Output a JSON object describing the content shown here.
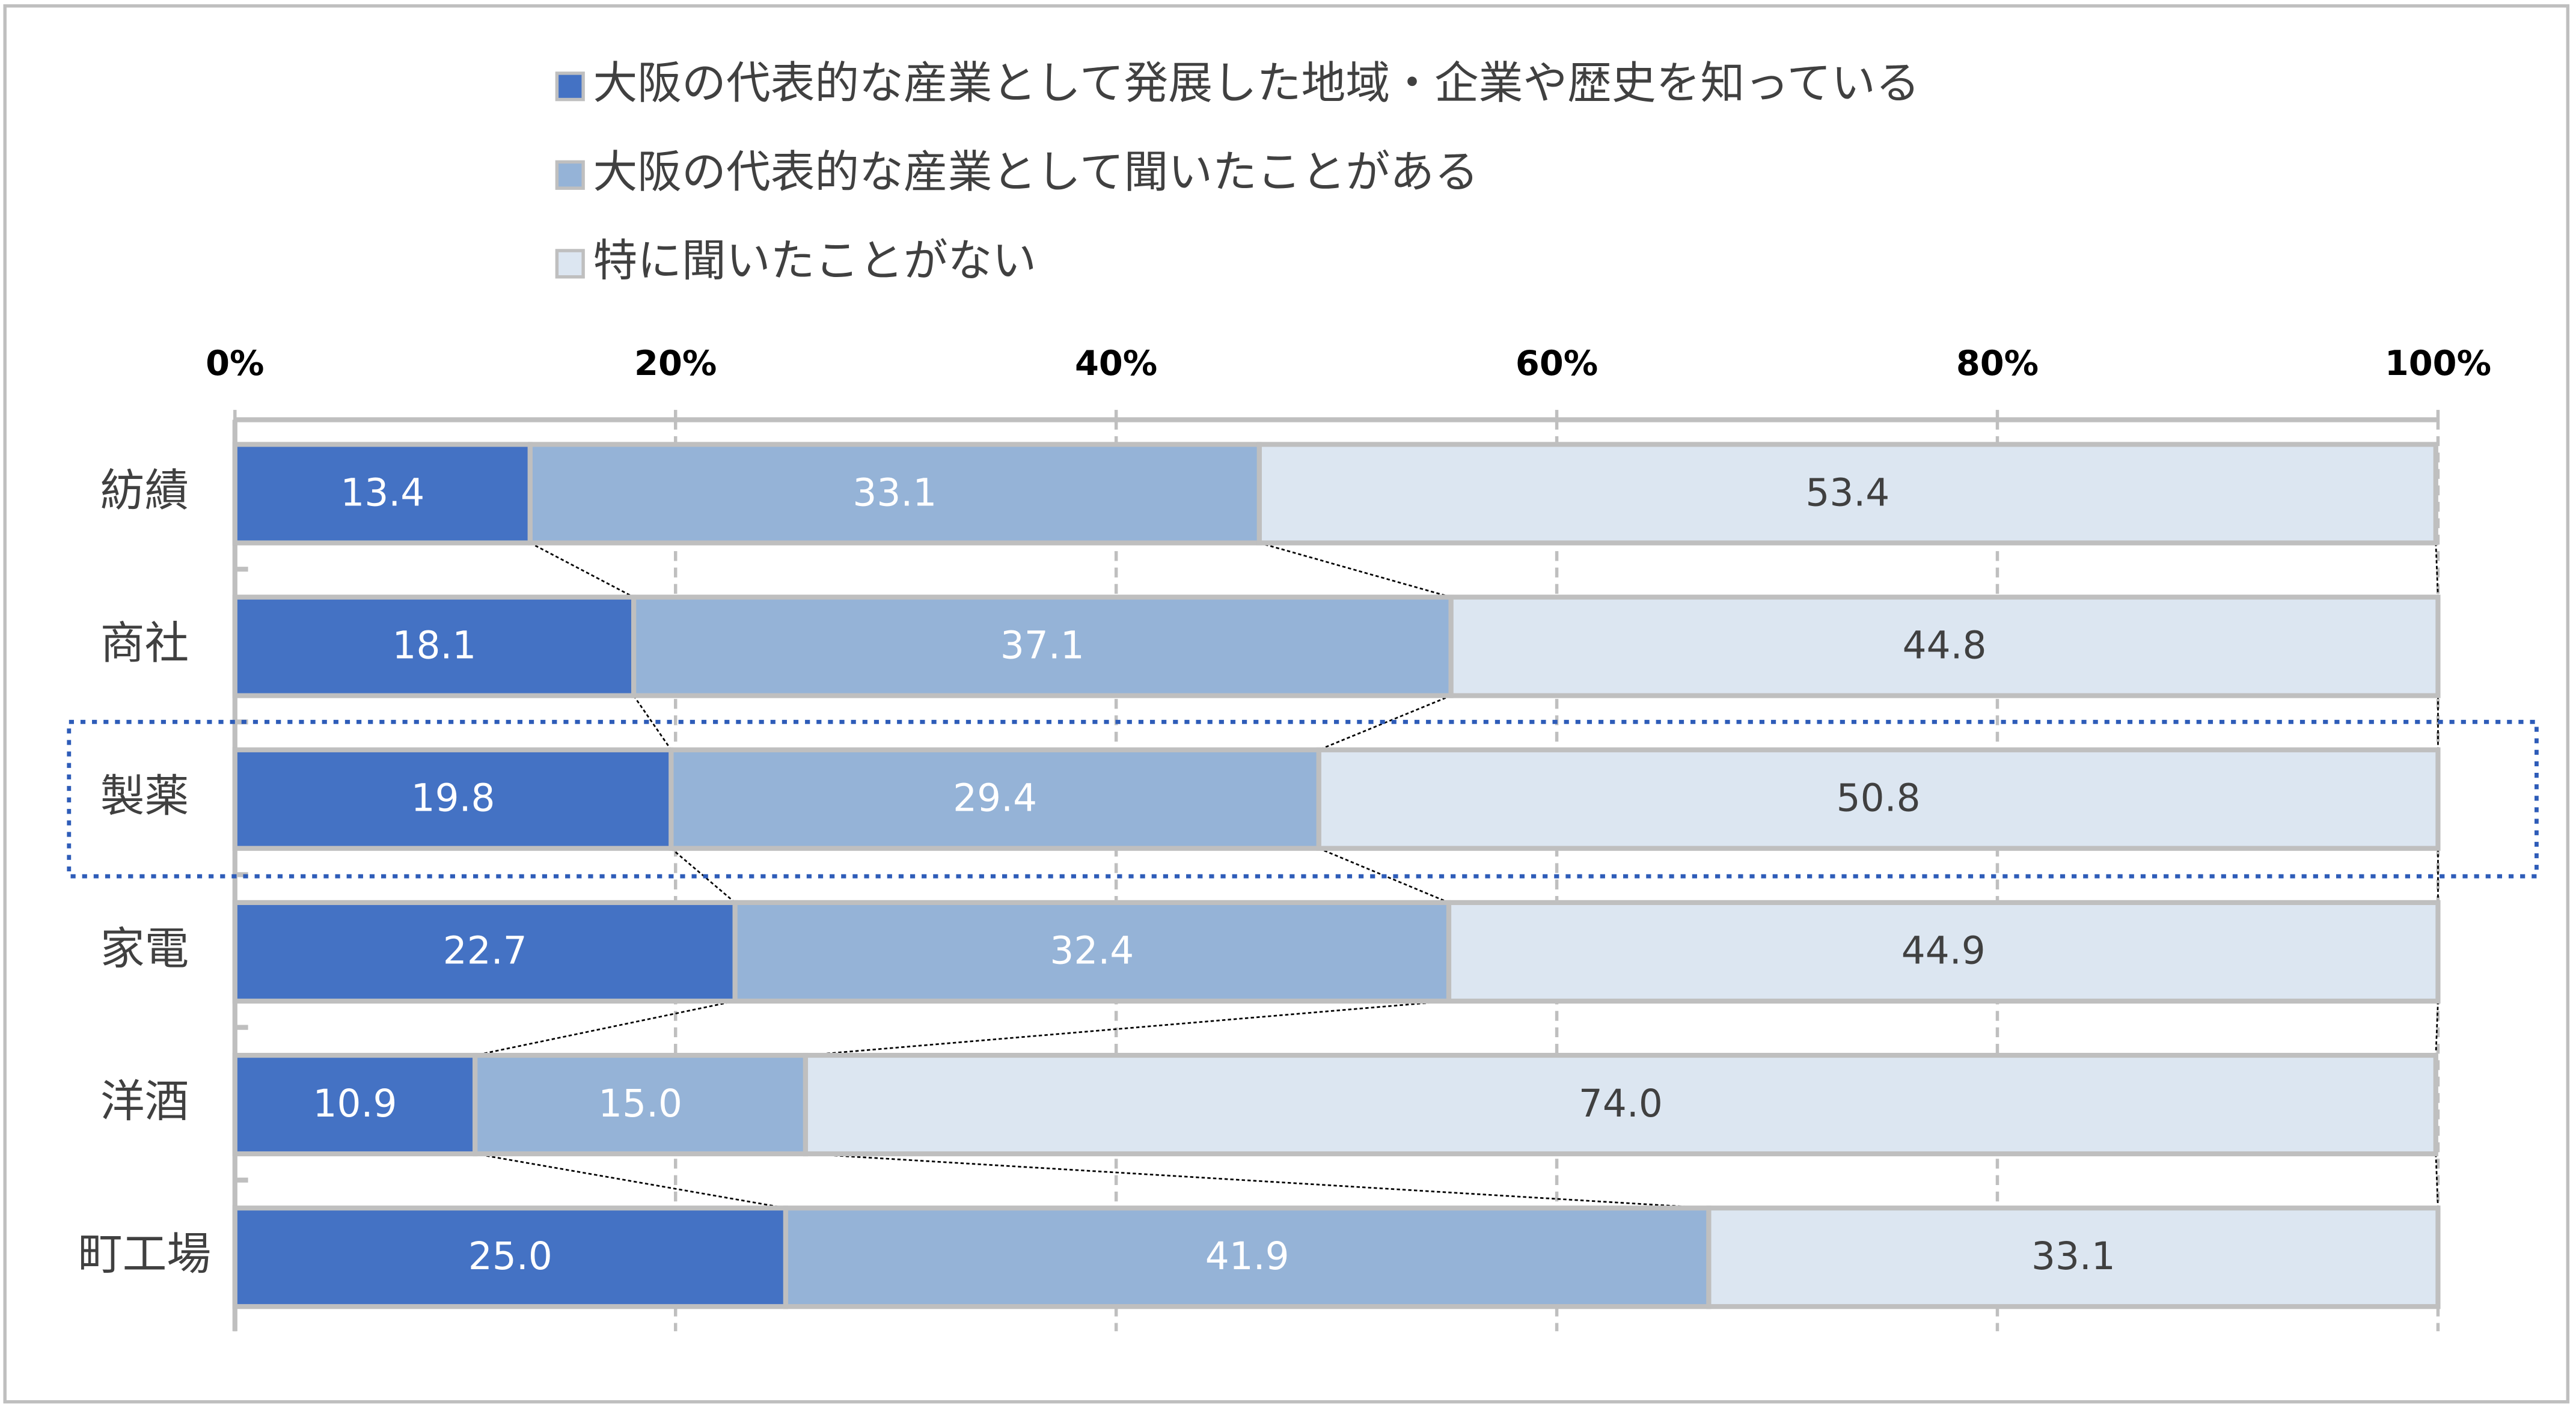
{
  "chart_data": {
    "type": "stacked-bar-horizontal",
    "categories": [
      "紡績",
      "商社",
      "製薬",
      "家電",
      "洋酒",
      "町工場"
    ],
    "series": [
      {
        "name": "大阪の代表的な産業として発展した地域・企業や歴史を知っている",
        "color": "#4472c4",
        "values": [
          13.4,
          18.1,
          19.8,
          22.7,
          10.9,
          25.0
        ],
        "value_labels": [
          "13.4",
          "18.1",
          "19.8",
          "22.7",
          "10.9",
          "25.0"
        ]
      },
      {
        "name": "大阪の代表的な産業として聞いたことがある",
        "color": "#95b3d7",
        "values": [
          33.1,
          37.1,
          29.4,
          32.4,
          15.0,
          41.9
        ],
        "value_labels": [
          "33.1",
          "37.1",
          "29.4",
          "32.4",
          "15.0",
          "41.9"
        ]
      },
      {
        "name": "特に聞いたことがない",
        "color": "#dce6f1",
        "values": [
          53.4,
          44.8,
          50.8,
          44.9,
          74.0,
          33.1
        ],
        "value_labels": [
          "53.4",
          "44.8",
          "50.8",
          "44.9",
          "74.0",
          "33.1"
        ]
      }
    ],
    "xlim": [
      0,
      100
    ],
    "xticks": [
      {
        "value": 0,
        "label": "0%"
      },
      {
        "value": 20,
        "label": "20%"
      },
      {
        "value": 40,
        "label": "40%"
      },
      {
        "value": 60,
        "label": "60%"
      },
      {
        "value": 80,
        "label": "80%"
      },
      {
        "value": 100,
        "label": "100%"
      }
    ],
    "grid": true,
    "legend": "top"
  }
}
